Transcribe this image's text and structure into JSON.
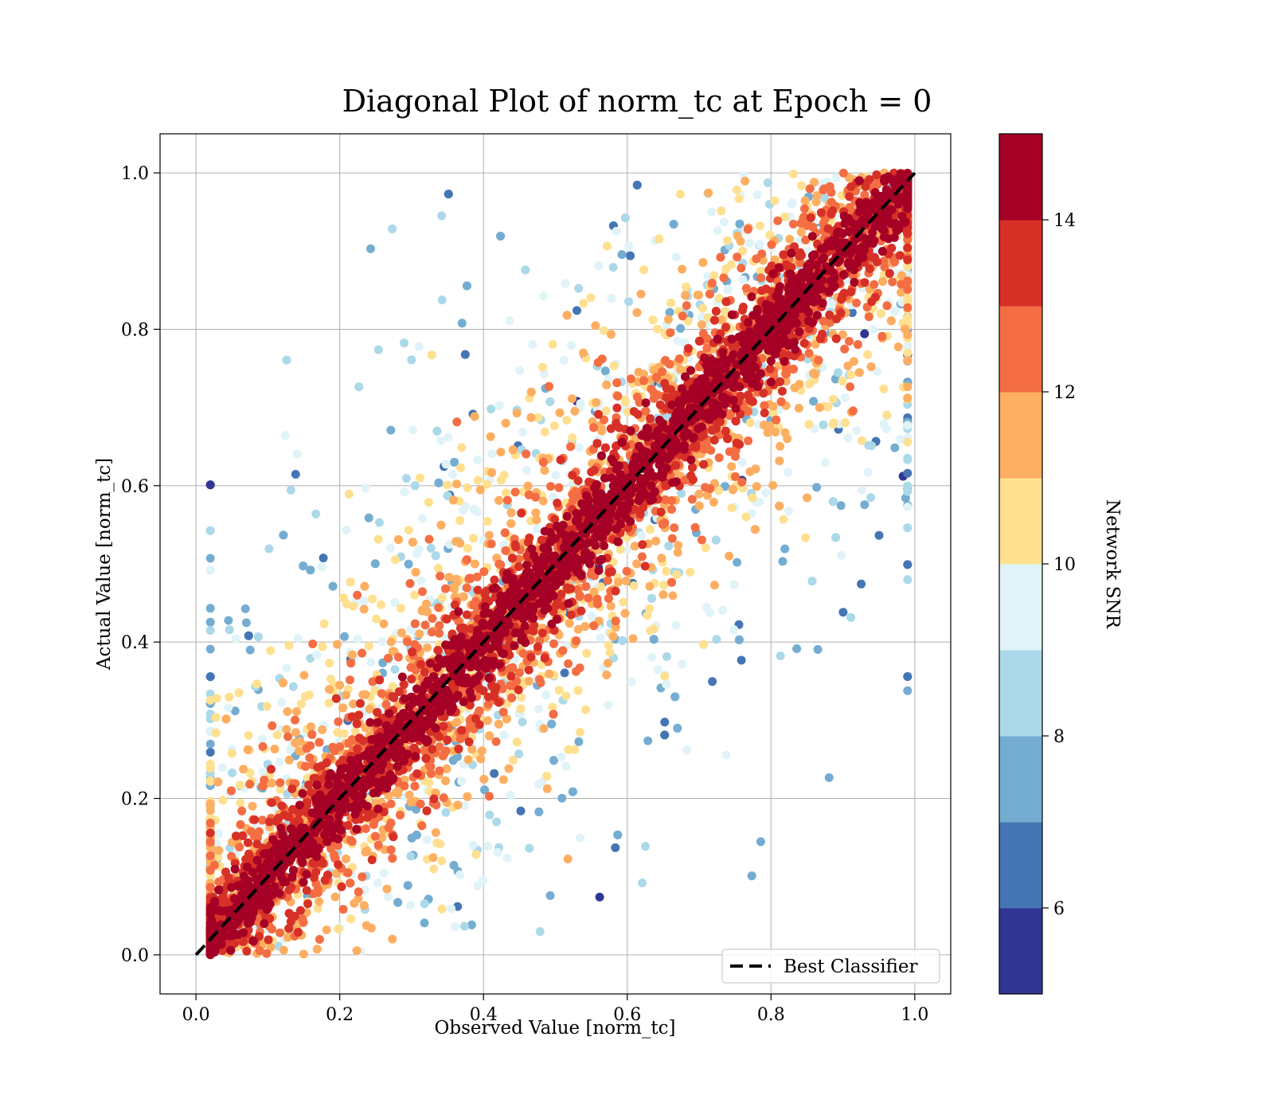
{
  "chart_data": {
    "type": "scatter",
    "title": "Diagonal Plot of norm_tc at Epoch = 0",
    "xlabel": "Observed Value [norm_tc]",
    "ylabel": "Actual Value [norm_tc]",
    "xlim": [
      -0.05,
      1.05
    ],
    "ylim": [
      -0.05,
      1.05
    ],
    "xticks": [
      "0.0",
      "0.2",
      "0.4",
      "0.6",
      "0.8",
      "1.0"
    ],
    "yticks": [
      "0.0",
      "0.2",
      "0.4",
      "0.6",
      "0.8",
      "1.0"
    ],
    "grid": true,
    "reference_line": {
      "name": "Best Classifier",
      "x": [
        0,
        1
      ],
      "y": [
        0,
        1
      ],
      "style": "dashed",
      "color": "#000000"
    },
    "legend": {
      "position": "lower-right",
      "entries": [
        "Best Classifier"
      ]
    },
    "point_cloud": {
      "description_of_distribution": "dense band along y=x; residual spread grows as SNR decreases",
      "x_range": [
        0.02,
        0.99
      ],
      "y_range": [
        0.0,
        1.0
      ]
    },
    "colorbar": {
      "label": "Network SNR",
      "colormap": "RdYlBu_r",
      "range": [
        5,
        15
      ],
      "tick_values": [
        6,
        8,
        10,
        12,
        14
      ],
      "tick_labels": [
        "6",
        "8",
        "10",
        "12",
        "14"
      ],
      "bin_colors": [
        "#313695",
        "#4575b4",
        "#74add1",
        "#abd9e9",
        "#e0f3f8",
        "#fee090",
        "#fdae61",
        "#f46d43",
        "#d73027",
        "#a50026"
      ]
    }
  }
}
